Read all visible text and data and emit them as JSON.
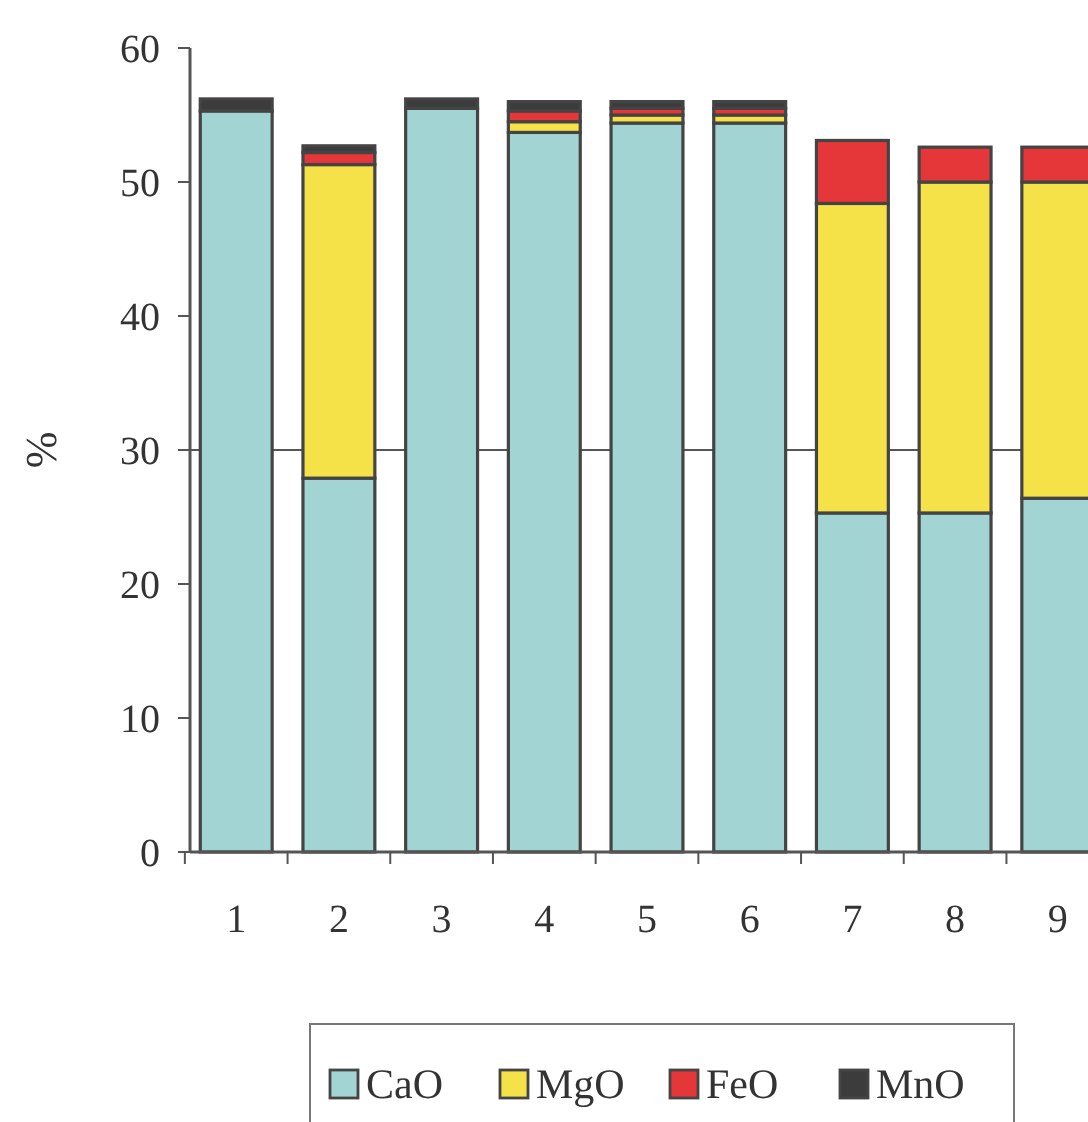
{
  "chart_data": {
    "type": "bar",
    "stacked": true,
    "ylabel": "%",
    "categories": [
      "1",
      "2",
      "3",
      "4",
      "5",
      "6",
      "7",
      "8",
      "9"
    ],
    "series": [
      {
        "name": "CaO",
        "color": "#a2d4d3",
        "values": [
          55.3,
          27.9,
          55.5,
          53.7,
          54.4,
          54.4,
          25.3,
          25.3,
          26.4
        ]
      },
      {
        "name": "MgO",
        "color": "#f5e148",
        "values": [
          0,
          23.4,
          0,
          0.8,
          0.6,
          0.6,
          23.1,
          24.7,
          23.6
        ]
      },
      {
        "name": "FeO",
        "color": "#e5373a",
        "values": [
          0,
          0.9,
          0,
          0.8,
          0.5,
          0.5,
          4.7,
          2.6,
          2.6
        ]
      },
      {
        "name": "MnO",
        "color": "#3c3c3c",
        "values": [
          0.9,
          0.5,
          0.7,
          0.7,
          0.5,
          0.5,
          0,
          0,
          0
        ]
      }
    ],
    "ylim": [
      0,
      60
    ],
    "yticks": [
      0,
      10,
      20,
      30,
      40,
      50,
      60
    ],
    "ref_lines": [
      {
        "axis": "y",
        "value": 30,
        "color": "#555555"
      }
    ],
    "legend": "bottom"
  }
}
